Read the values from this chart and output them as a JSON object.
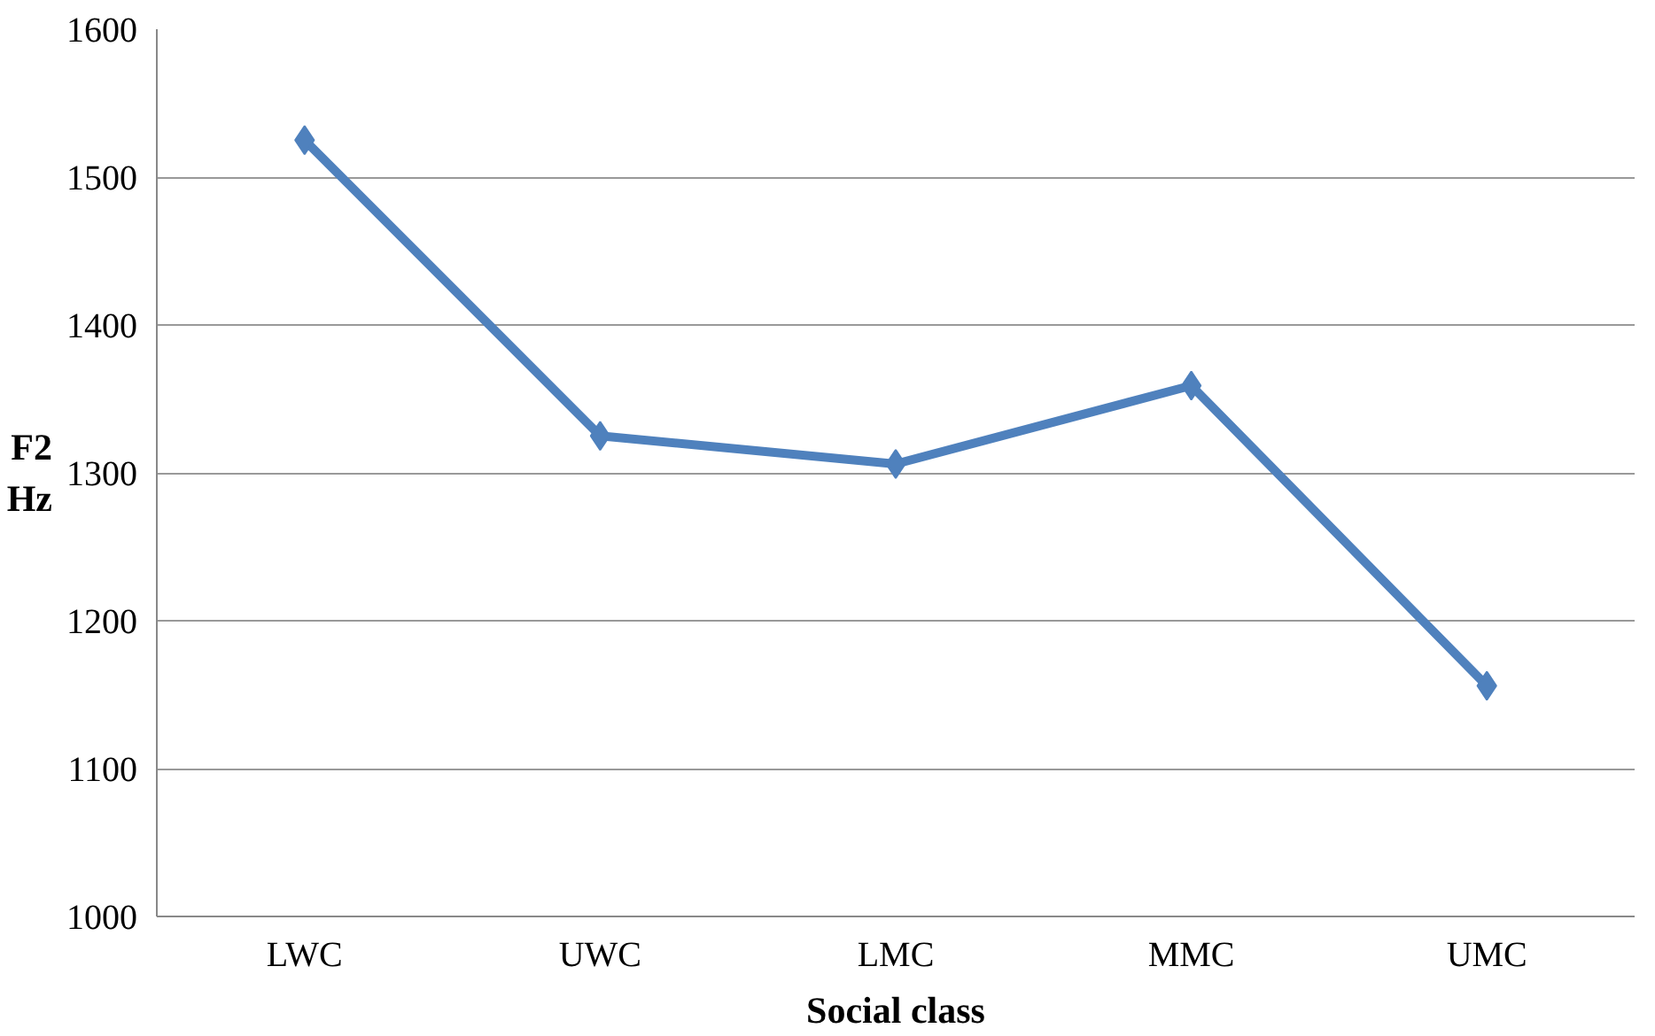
{
  "chart_data": {
    "type": "line",
    "xlabel": "Social class",
    "ylabel": "F2\nHz",
    "categories": [
      "LWC",
      "UWC",
      "LMC",
      "MMC",
      "UMC"
    ],
    "series": [
      {
        "color": "#4f81bd",
        "values": [
          1525,
          1325,
          1306,
          1359,
          1156
        ]
      }
    ],
    "ylim": [
      1000,
      1600
    ],
    "yticks": [
      1000,
      1100,
      1200,
      1300,
      1400,
      1500,
      1600
    ],
    "grid": "y",
    "marker": "diamond",
    "line_style": "solid"
  }
}
